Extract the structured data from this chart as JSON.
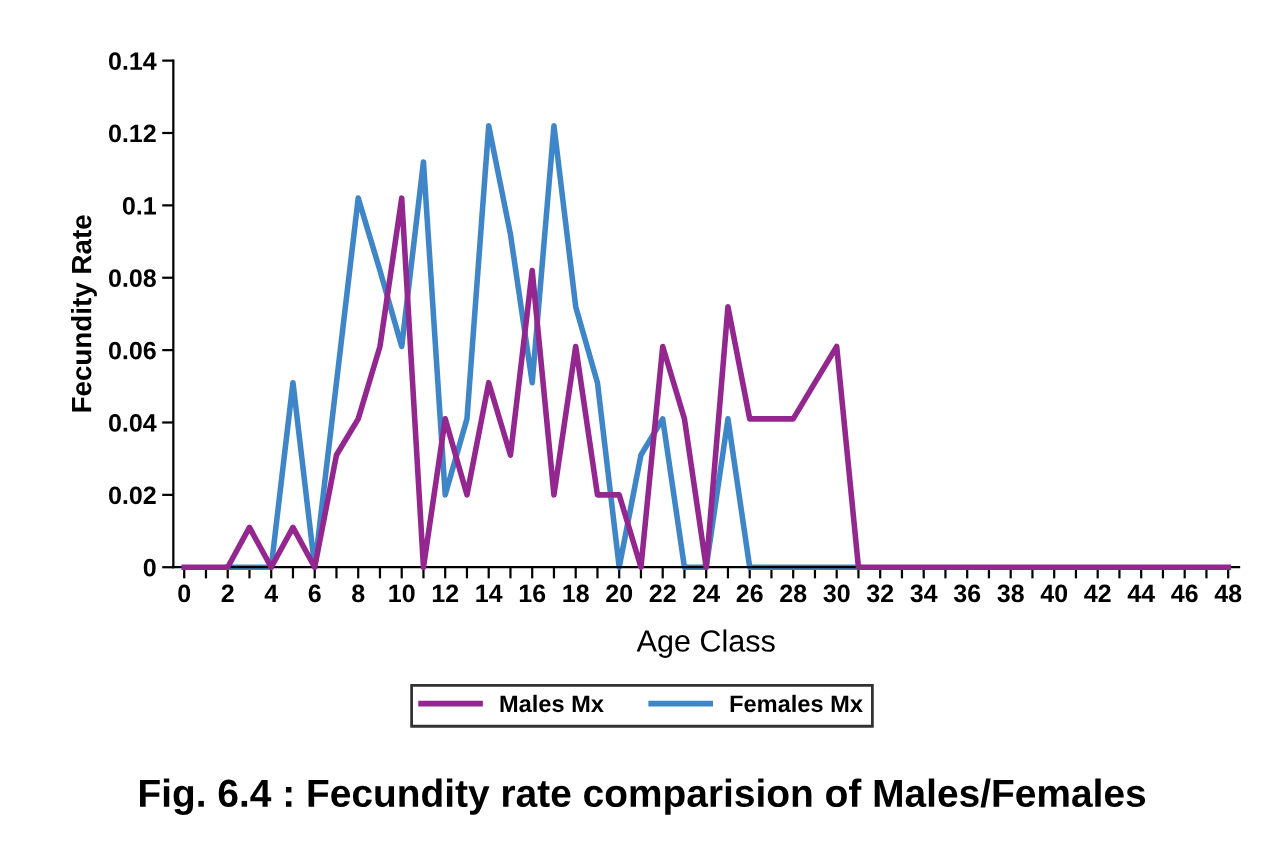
{
  "chart_data": {
    "type": "line",
    "title": "Fig. 6.4 : Fecundity rate comparision of Males/Females",
    "xlabel": "Age Class",
    "ylabel": "Fecundity Rate",
    "categories": [
      "0",
      null,
      "2",
      null,
      "4",
      null,
      "6",
      null,
      "8",
      null,
      "10",
      null,
      "12",
      null,
      "14",
      null,
      "16",
      null,
      "18",
      null,
      "20",
      null,
      "22",
      null,
      "24",
      null,
      "26",
      null,
      "28",
      null,
      "30",
      null,
      "32",
      null,
      "34",
      null,
      "36",
      null,
      "38",
      null,
      "40",
      null,
      "42",
      null,
      "44",
      null,
      "46",
      null,
      "48"
    ],
    "series": [
      {
        "name": "Males Mx",
        "color": "#93278f",
        "values": [
          0,
          0,
          0,
          0.011,
          0,
          0.011,
          0,
          0.031,
          0.041,
          0.061,
          0.102,
          0,
          0.041,
          0.02,
          0.051,
          0.031,
          0.082,
          0.02,
          0.061,
          0.02,
          0.02,
          0,
          0.061,
          0.041,
          0,
          0.072,
          0.041,
          0.041,
          0.041,
          0.051,
          0.061,
          0,
          0,
          0,
          0,
          0,
          0,
          0,
          0,
          0,
          0,
          0,
          0,
          0,
          0,
          0,
          0,
          0,
          0
        ]
      },
      {
        "name": "Females Mx",
        "color": "#3f86c8",
        "values": [
          null,
          null,
          0,
          0,
          0,
          0.051,
          0,
          0.051,
          0.102,
          0.082,
          0.061,
          0.112,
          0.02,
          0.041,
          0.122,
          0.092,
          0.051,
          0.122,
          0.072,
          0.051,
          0,
          0.031,
          0.041,
          0,
          0,
          0.041,
          0,
          0,
          0,
          0,
          0,
          0,
          null,
          null,
          null,
          null,
          null,
          null,
          null,
          null,
          null,
          null,
          null,
          null,
          null,
          null,
          null,
          null,
          null
        ]
      }
    ],
    "ylim": [
      0,
      0.14
    ],
    "yticks": [
      0,
      0.02,
      0.04,
      0.06,
      0.08,
      0.1,
      0.12,
      0.14
    ],
    "grid": false,
    "legend": "bottom",
    "marker": "none",
    "line_style": "solid"
  }
}
